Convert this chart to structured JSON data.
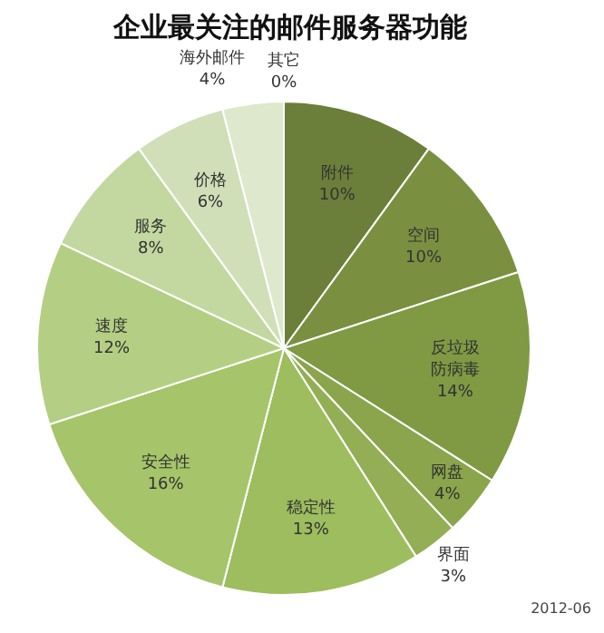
{
  "chart_data": {
    "type": "pie",
    "title": "企业最关注的邮件服务器功能",
    "categories": [
      "附件",
      "空间",
      "反垃圾防病毒",
      "网盘",
      "界面",
      "稳定性",
      "安全性",
      "速度",
      "服务",
      "价格",
      "海外邮件",
      "其它"
    ],
    "values": [
      10,
      10,
      14,
      4,
      3,
      13,
      16,
      12,
      8,
      6,
      4,
      0
    ],
    "value_labels": [
      "10%",
      "10%",
      "14%",
      "4%",
      "3%",
      "13%",
      "16%",
      "12%",
      "8%",
      "6%",
      "4%",
      "0%"
    ],
    "colors": [
      "#6b7f3a",
      "#7a9040",
      "#7f9a43",
      "#8aa54c",
      "#93ae55",
      "#9dbd5e",
      "#a6c46a",
      "#b4cf83",
      "#c3d8a0",
      "#d0dfb8",
      "#dde8cc",
      "#e8efdd"
    ],
    "legend": false,
    "annotations": [
      "2012-06"
    ]
  }
}
